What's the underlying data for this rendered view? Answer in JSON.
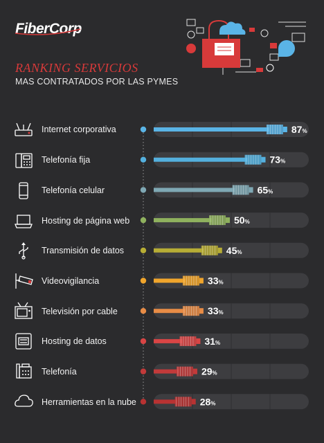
{
  "brand": {
    "name": "FiberCorp"
  },
  "header": {
    "title": "RANKING SERVICIOS",
    "subtitle": "MAS CONTRATADOS POR LAS PYMES"
  },
  "colors": {
    "background": "#2b2b2d",
    "track": "#3d3d40",
    "title_red": "#d83a3a"
  },
  "chart_data": {
    "type": "bar",
    "orientation": "horizontal",
    "unit": "%",
    "xlim": [
      0,
      100
    ],
    "categories": [
      "Internet corporativa",
      "Telefonía fija",
      "Telefonía celular",
      "Hosting de página web",
      "Transmisión de datos",
      "Videovigilancia",
      "Televisión por cable",
      "Hosting de datos",
      "Telefonía",
      "Herramientas en la nube"
    ],
    "values": [
      87,
      73,
      65,
      50,
      45,
      33,
      33,
      31,
      29,
      28
    ],
    "colors": [
      "#5ab4e6",
      "#54b0de",
      "#7fa8b4",
      "#8fb15e",
      "#b7ad35",
      "#f0a52c",
      "#e88c46",
      "#d94545",
      "#c23a3a",
      "#b83232"
    ],
    "icons": [
      "router-icon",
      "desk-phone-icon",
      "mobile-phone-icon",
      "laptop-icon",
      "usb-icon",
      "security-camera-icon",
      "television-icon",
      "server-icon",
      "office-phone-icon",
      "cloud-icon"
    ]
  }
}
